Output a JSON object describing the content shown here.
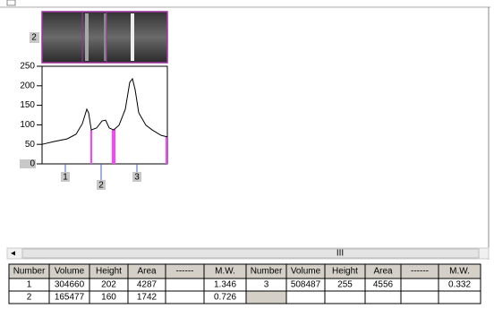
{
  "lane": {
    "label": "2"
  },
  "chart_data": {
    "type": "line",
    "color": "#000000",
    "x": [
      0,
      13,
      28,
      38,
      45,
      50,
      52,
      55,
      61,
      67,
      71,
      75,
      80,
      86,
      93,
      98,
      101,
      104,
      108,
      116,
      123,
      133,
      140
    ],
    "values": [
      50,
      57,
      64,
      76,
      103,
      140,
      131,
      87,
      92,
      110,
      112,
      92,
      87,
      99,
      140,
      209,
      218,
      190,
      131,
      99,
      87,
      73,
      69
    ],
    "xlim": [
      0,
      140
    ],
    "ylim": [
      0,
      250
    ],
    "yticks": [
      0,
      50,
      100,
      150,
      200,
      250
    ],
    "boundaries": {
      "color": "#ff40ff",
      "x": [
        55,
        79,
        81,
        139
      ]
    },
    "peaks": {
      "color": "#4060c0",
      "labels": [
        "1",
        "2",
        "3"
      ],
      "x": [
        26,
        66,
        106
      ]
    }
  },
  "scrollbar": {
    "label": "III"
  },
  "table": {
    "headers": [
      "Number",
      "Volume",
      "Height",
      "Area",
      "------",
      "M.W."
    ],
    "left_rows": [
      [
        1,
        304660,
        202,
        4287,
        1.346
      ],
      [
        2,
        165477,
        160,
        1742,
        0.726
      ]
    ],
    "right_rows": [
      [
        3,
        508487,
        255,
        4556,
        0.332
      ]
    ]
  }
}
